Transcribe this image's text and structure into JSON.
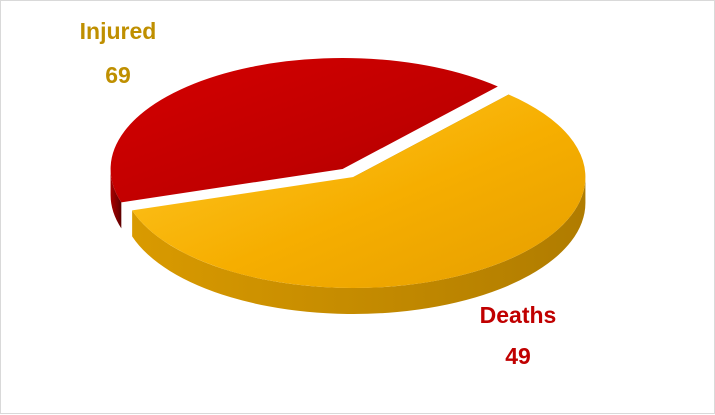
{
  "chart_data": {
    "type": "pie",
    "style": "3d",
    "title": "",
    "slices": [
      {
        "name": "Injured",
        "value": 69,
        "color": "#F8B300"
      },
      {
        "name": "Deaths",
        "value": 49,
        "color": "#C00000"
      }
    ],
    "label_colors": {
      "Injured": "#BF8F00",
      "Deaths": "#C00000"
    },
    "exploded": true
  }
}
